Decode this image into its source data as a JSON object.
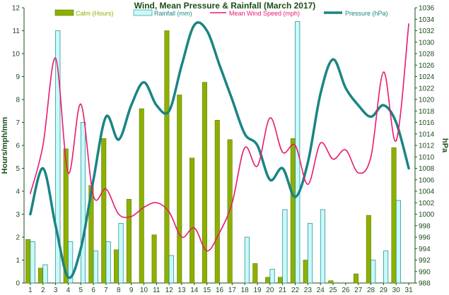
{
  "chart_data": {
    "type": "bar",
    "title": "Wind, Mean Pressure & Rainfall (March 2017)",
    "ylabel_left": "Hours/mph/mm",
    "ylabel_right": "hPa",
    "x": [
      1,
      2,
      3,
      4,
      5,
      6,
      7,
      8,
      9,
      10,
      11,
      12,
      13,
      14,
      15,
      16,
      17,
      18,
      19,
      20,
      21,
      22,
      23,
      24,
      25,
      26,
      27,
      28,
      29,
      30,
      31
    ],
    "ylim_left": [
      0,
      12
    ],
    "ylim_right": [
      988,
      1036
    ],
    "yticks_left": [
      0,
      1,
      2,
      3,
      4,
      5,
      6,
      7,
      8,
      9,
      10,
      11,
      12
    ],
    "yticks_right": [
      988,
      990,
      992,
      994,
      996,
      998,
      1000,
      1002,
      1004,
      1006,
      1008,
      1010,
      1012,
      1014,
      1016,
      1018,
      1020,
      1022,
      1024,
      1026,
      1028,
      1030,
      1032,
      1034,
      1036
    ],
    "legend_placement": "top",
    "grid": false,
    "series": [
      {
        "name": "Calm (Hours)",
        "kind": "bar",
        "axis": "left",
        "color": "#8db000",
        "values": [
          1.9,
          0.65,
          0,
          5.85,
          0,
          4.25,
          6.3,
          1.45,
          3.65,
          7.6,
          2.1,
          11,
          8.2,
          5.45,
          8.75,
          7.1,
          6.25,
          0,
          0.85,
          0.25,
          0.25,
          6.3,
          1.0,
          0,
          0.1,
          0,
          0.4,
          2.95,
          0,
          5.9,
          0
        ]
      },
      {
        "name": "Rainfall (mm)",
        "kind": "bar",
        "axis": "left",
        "color": "#c8fafa",
        "values": [
          1.8,
          0.8,
          11,
          1.8,
          7.0,
          1.4,
          1.8,
          2.6,
          0,
          0,
          0,
          1.2,
          0,
          0,
          0,
          0,
          0,
          2.0,
          0,
          0.6,
          3.2,
          11.4,
          2.6,
          3.2,
          0,
          0,
          0,
          1.0,
          1.4,
          3.6,
          0
        ]
      },
      {
        "name": "Mean Wind Speed (mph)",
        "kind": "line",
        "axis": "left",
        "color": "#e8196e",
        "values": [
          3.9,
          6.0,
          9.8,
          4.8,
          7.8,
          3.8,
          4.1,
          3.0,
          2.9,
          3.3,
          3.5,
          3.1,
          2.0,
          2.4,
          1.4,
          2.2,
          3.5,
          5.9,
          5.1,
          7.2,
          5.7,
          6.0,
          4.3,
          6.1,
          5.4,
          5.8,
          4.8,
          5.5,
          9.2,
          6.2,
          11.3
        ]
      },
      {
        "name": "Pressure (hPa)",
        "kind": "line",
        "axis": "right",
        "color": "#1a8484",
        "values": [
          1000,
          1008,
          998,
          989,
          994,
          1006,
          1017,
          1013,
          1019,
          1023,
          1019,
          1018,
          1026,
          1033,
          1032,
          1026,
          1020,
          1014,
          1012,
          1006,
          1008,
          1003,
          1009,
          1021,
          1027,
          1022,
          1019,
          1017,
          1019,
          1016,
          1008
        ]
      }
    ]
  }
}
